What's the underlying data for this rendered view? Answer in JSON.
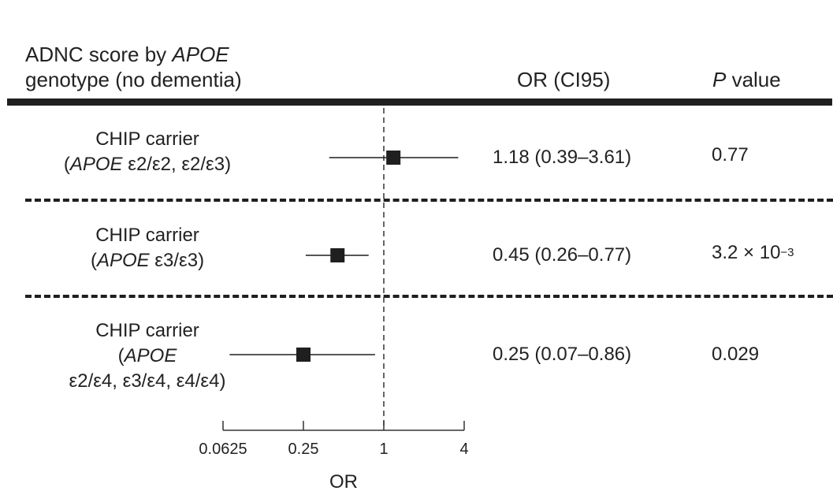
{
  "header": {
    "label_line1_prefix": "ADNC score by ",
    "label_line1_italic": "APOE",
    "label_line2": "genotype (no dementia)",
    "or_header": "OR (CI95)",
    "p_header_italic": "P",
    "p_header_rest": " value"
  },
  "rows": [
    {
      "line1": "CHIP carrier",
      "line2_open": "(",
      "line2_italic": "APOE",
      "line2_rest": " ε2/ε2, ε2/ε3)",
      "or_text": "1.18 (0.39–3.61)",
      "p_text": "0.77"
    },
    {
      "line1": "CHIP carrier",
      "line2_open": "(",
      "line2_italic": "APOE",
      "line2_rest": " ε3/ε3)",
      "or_text": "0.45 (0.26–0.77)",
      "p_base": "3.2 × 10",
      "p_exp": "−3"
    },
    {
      "line1": "CHIP carrier",
      "line2_open": "(",
      "line2_italic": "APOE",
      "line3": "ε2/ε4, ε3/ε4, ε4/ε4)",
      "or_text": "0.25 (0.07–0.86)",
      "p_text": "0.029"
    }
  ],
  "chart_data": {
    "type": "forest",
    "xlabel": "OR",
    "x_scale": "log2",
    "xlim": [
      0.0625,
      4
    ],
    "xticks": [
      0.0625,
      0.25,
      1,
      4
    ],
    "xtick_labels": [
      "0.0625",
      "0.25",
      "1",
      "4"
    ],
    "reference_line": 1,
    "points": [
      {
        "or": 1.18,
        "lo": 0.39,
        "hi": 3.61
      },
      {
        "or": 0.45,
        "lo": 0.26,
        "hi": 0.77
      },
      {
        "or": 0.25,
        "lo": 0.07,
        "hi": 0.86
      }
    ]
  }
}
